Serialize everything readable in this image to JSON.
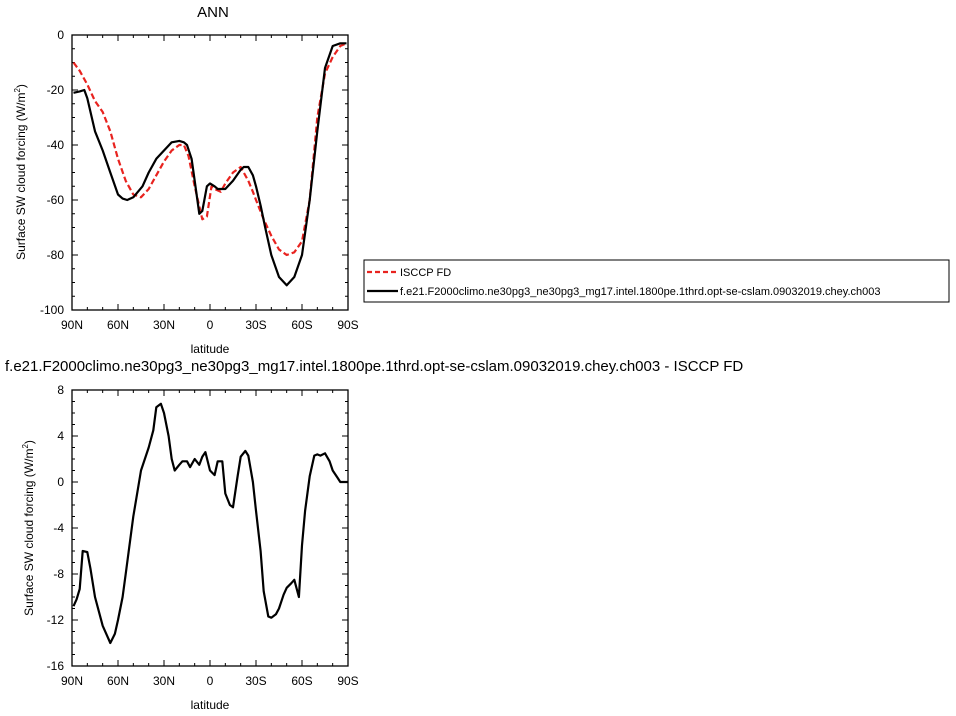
{
  "colors": {
    "series_obs": "#e8231f",
    "series_model": "#000000",
    "axis": "#000000",
    "background": "#ffffff"
  },
  "chart_data": [
    {
      "type": "line",
      "title": "ANN",
      "xlabel": "latitude",
      "ylabel_main": "Surface SW cloud forcing (W/m",
      "ylabel_sup": "2",
      "ylabel_close": ")",
      "xlim": [
        90,
        -90
      ],
      "ylim": [
        -100,
        0
      ],
      "xticks": [
        90,
        60,
        30,
        0,
        -30,
        -60,
        -90
      ],
      "xticklabels": [
        "90N",
        "60N",
        "30N",
        "0",
        "30S",
        "60S",
        "90S"
      ],
      "yticks": [
        0,
        -20,
        -40,
        -60,
        -80,
        -100
      ],
      "yticklabels": [
        "0",
        "-20",
        "-40",
        "-60",
        "-80",
        "-100"
      ],
      "legend": "right",
      "series": [
        {
          "name": "ISCCP FD",
          "style": "dashed",
          "x": [
            89,
            85,
            80,
            75,
            70,
            65,
            60,
            55,
            50,
            45,
            40,
            35,
            30,
            25,
            20,
            17,
            14,
            10,
            5,
            2,
            -1,
            -3,
            -7,
            -10,
            -15,
            -20,
            -25,
            -28,
            -30,
            -35,
            -40,
            -45,
            -50,
            -55,
            -60,
            -65,
            -70,
            -75,
            -80,
            -85,
            -89
          ],
          "values": [
            -10,
            -13,
            -18,
            -24,
            -28,
            -35,
            -45,
            -53,
            -58,
            -59,
            -56,
            -51,
            -46,
            -42,
            -40,
            -40,
            -44,
            -55,
            -67,
            -66,
            -55,
            -56,
            -57,
            -54,
            -50,
            -48,
            -53,
            -57,
            -60,
            -67,
            -73,
            -78,
            -80,
            -79,
            -75,
            -60,
            -30,
            -14,
            -8,
            -4,
            -3
          ]
        },
        {
          "name": "f.e21.F2000climo.ne30pg3_ne30pg3_mg17.intel.1800pe.1thrd.opt-se-cslam.09032019.chey.ch003",
          "style": "solid",
          "x": [
            89,
            85,
            82,
            80,
            75,
            70,
            65,
            60,
            57,
            54,
            50,
            47,
            44,
            40,
            35,
            30,
            25,
            20,
            17,
            15,
            12,
            10,
            7,
            5,
            2,
            0,
            -3,
            -5,
            -10,
            -15,
            -20,
            -22,
            -25,
            -28,
            -30,
            -33,
            -36,
            -40,
            -45,
            -50,
            -55,
            -60,
            -65,
            -70,
            -75,
            -80,
            -85,
            -89
          ],
          "values": [
            -21,
            -20.5,
            -20,
            -23,
            -35,
            -42,
            -50,
            -58,
            -59.5,
            -60,
            -59,
            -57,
            -55,
            -50,
            -45,
            -42,
            -39,
            -38.5,
            -39,
            -40,
            -45,
            -53,
            -65,
            -64,
            -55,
            -54,
            -55,
            -56,
            -56,
            -53,
            -49,
            -48,
            -48,
            -51,
            -55,
            -62,
            -70,
            -80,
            -88,
            -91,
            -88,
            -80,
            -60,
            -35,
            -12,
            -4,
            -3,
            -3
          ]
        }
      ]
    },
    {
      "type": "line",
      "title": "f.e21.F2000climo.ne30pg3_ne30pg3_mg17.intel.1800pe.1thrd.opt-se-cslam.09032019.chey.ch003 - ISCCP FD",
      "xlabel": "latitude",
      "ylabel_main": "Surface SW cloud forcing (W/m",
      "ylabel_sup": "2",
      "ylabel_close": ")",
      "xlim": [
        90,
        -90
      ],
      "ylim": [
        -16,
        8
      ],
      "xticks": [
        90,
        60,
        30,
        0,
        -30,
        -60,
        -90
      ],
      "xticklabels": [
        "90N",
        "60N",
        "30N",
        "0",
        "30S",
        "60S",
        "90S"
      ],
      "yticks": [
        8,
        4,
        0,
        -4,
        -8,
        -12,
        -16
      ],
      "yticklabels": [
        "8",
        "4",
        "0",
        "-4",
        "-8",
        "-12",
        "-16"
      ],
      "series": [
        {
          "style": "solid",
          "x": [
            89,
            87,
            85,
            83,
            80,
            78,
            75,
            70,
            65,
            62,
            60,
            57,
            55,
            50,
            45,
            40,
            37,
            35,
            32,
            30,
            27,
            25,
            23,
            20,
            18,
            15,
            13,
            10,
            7,
            5,
            3,
            0,
            -3,
            -5,
            -8,
            -10,
            -13,
            -15,
            -18,
            -20,
            -23,
            -25,
            -28,
            -30,
            -33,
            -35,
            -38,
            -40,
            -43,
            -45,
            -48,
            -50,
            -53,
            -55,
            -58,
            -60,
            -62,
            -65,
            -68,
            -70,
            -72,
            -75,
            -78,
            -80,
            -83,
            -85,
            -88,
            -90
          ],
          "values": [
            -10.8,
            -10.2,
            -9.3,
            -6,
            -6.1,
            -7.5,
            -10,
            -12.5,
            -14,
            -13.2,
            -12,
            -10,
            -8,
            -3,
            1,
            3,
            4.5,
            6.5,
            6.8,
            6,
            4,
            2,
            1,
            1.5,
            1.8,
            1.8,
            1.3,
            2,
            1.5,
            2.2,
            2.6,
            1,
            0.6,
            1.8,
            1.8,
            -1,
            -2,
            -2.2,
            0.5,
            2.2,
            2.7,
            2.3,
            0,
            -2.5,
            -6,
            -9.5,
            -11.7,
            -11.8,
            -11.5,
            -11,
            -9.8,
            -9.2,
            -8.8,
            -8.5,
            -10,
            -5.5,
            -2.5,
            0.5,
            2.3,
            2.4,
            2.3,
            2.5,
            1.8,
            1,
            0.4,
            0,
            0,
            0
          ]
        }
      ]
    }
  ]
}
